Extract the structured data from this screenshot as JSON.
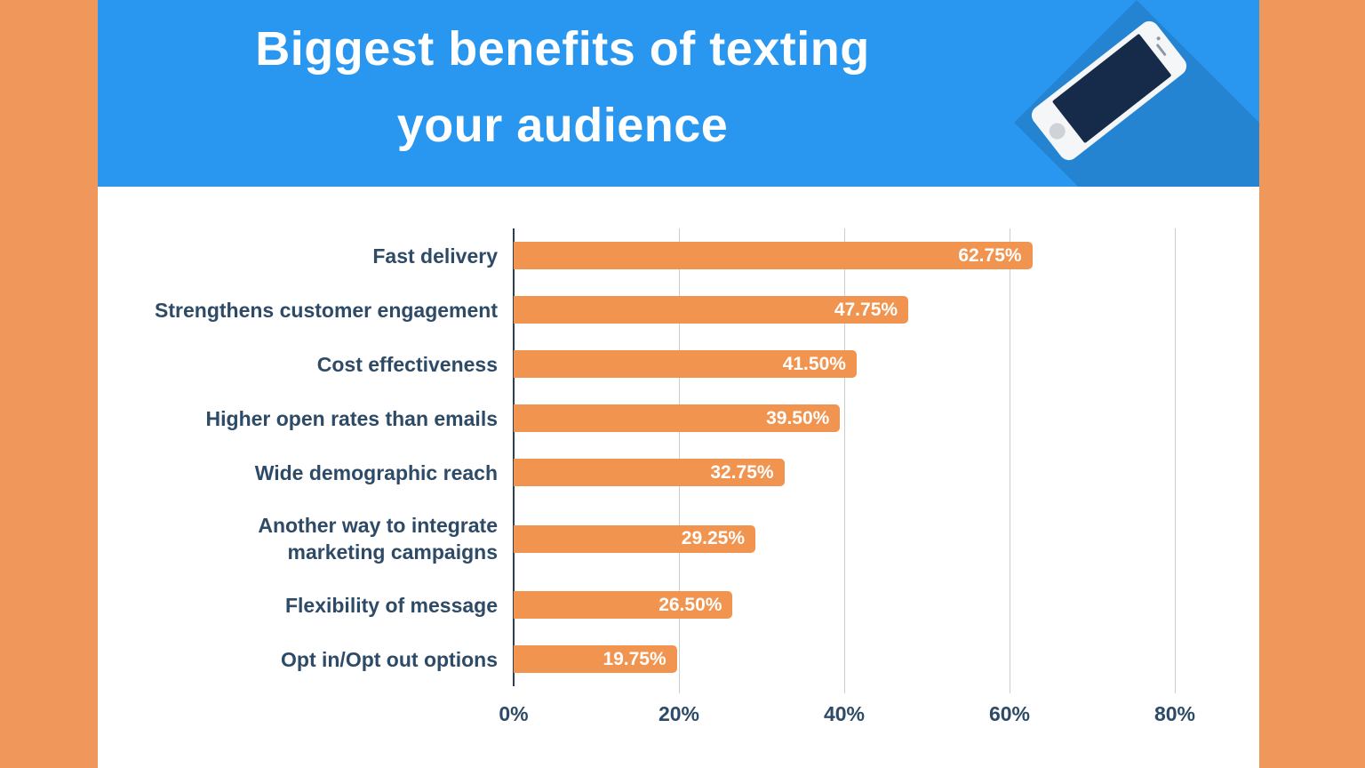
{
  "page": {
    "title_lines": [
      "Biggest benefits of texting",
      "your audience"
    ],
    "title": "Biggest benefits of texting your audience"
  },
  "icons": {
    "phone": "smartphone-illustration"
  },
  "colors": {
    "border_orange": "#F0975C",
    "header_blue": "#2997EF",
    "bar_orange": "#F0944F",
    "text_navy": "#2D4A66",
    "phone_screen_navy": "#162B49",
    "gridline_gray": "#CCCCCC"
  },
  "chart_data": {
    "type": "bar",
    "orientation": "horizontal",
    "title": "Biggest benefits of texting your audience",
    "categories": [
      "Fast delivery",
      "Strengthens customer engagement",
      "Cost effectiveness",
      "Higher open rates than emails",
      "Wide demographic reach",
      "Another way to integrate\nmarketing campaigns",
      "Flexibility of message",
      "Opt in/Opt out options"
    ],
    "values": [
      62.75,
      47.75,
      41.5,
      39.5,
      32.75,
      29.25,
      26.5,
      19.75
    ],
    "value_labels": [
      "62.75%",
      "47.75%",
      "41.50%",
      "39.50%",
      "32.75%",
      "29.25%",
      "26.50%",
      "19.75%"
    ],
    "x_ticks": [
      "0%",
      "20%",
      "40%",
      "60%",
      "80%"
    ],
    "x_tick_values": [
      0,
      20,
      40,
      60,
      80
    ],
    "xlim": [
      0,
      80
    ],
    "xlabel": "",
    "ylabel": "",
    "grid": true,
    "legend": false,
    "value_labels_position": "inside-end",
    "bar_color": "#F0944F"
  }
}
